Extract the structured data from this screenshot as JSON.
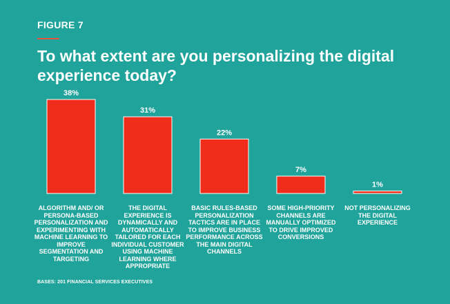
{
  "figure_label": "FIGURE 7",
  "title": "To what extent are you personalizing the digital experience today?",
  "bases_note": "BASES: 201 FINANCIAL SERVICES EXECUTIVES",
  "colors": {
    "background": "#1fa39b",
    "bar": "#f02c1a",
    "accent_rule": "#e8503a",
    "text": "#ffffff"
  },
  "chart_data": {
    "type": "bar",
    "title": "To what extent are you personalizing the digital experience today?",
    "xlabel": "",
    "ylabel": "",
    "ylim": [
      0,
      38
    ],
    "grid": false,
    "categories": [
      "ALGORITHM AND/ OR PERSONA-BASED PERSONALIZATION AND EXPERIMENTING WITH MACHINE LEARNING TO IMPROVE SEGMENTATION AND TARGETING",
      "THE DIGITAL EXPERIENCE IS DYNAMICALLY AND AUTOMATICALLY TAILORED FOR EACH INDIVIDUAL CUSTOMER USING MACHINE LEARNING WHERE APPROPRIATE",
      "BASIC RULES-BASED PERSONALIZATION TACTICS ARE IN PLACE TO IMPROVE BUSINESS PERFORMANCE ACROSS THE MAIN DIGITAL CHANNELS",
      "SOME HIGH-PRIORITY CHANNELS ARE MANUALLY OPTIMIZED TO DRIVE IMPROVED CONVERSIONS",
      "NOT PERSONALIZING THE DIGITAL EXPERIENCE"
    ],
    "values": [
      38,
      31,
      22,
      7,
      1
    ],
    "value_labels": [
      "38%",
      "31%",
      "22%",
      "7%",
      "1%"
    ]
  }
}
